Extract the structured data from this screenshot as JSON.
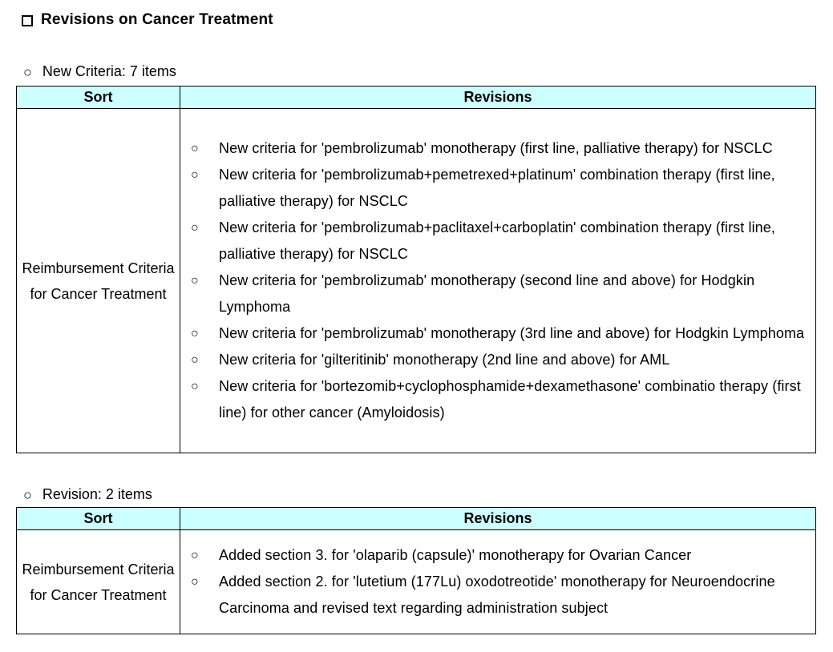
{
  "title": "Revisions on Cancer Treatment",
  "markers": {
    "title": "empty-square",
    "section": "○",
    "item": "○"
  },
  "colors": {
    "table_header_bg": "#CCFFFF",
    "border": "#000000",
    "text": "#000000"
  },
  "sections": [
    {
      "heading": "New Criteria: 7 items",
      "table": {
        "headers": [
          "Sort",
          "Revisions"
        ],
        "sort": "Reimbursement Criteria for Cancer Treatment",
        "revisions": [
          "New criteria for 'pembrolizumab' monotherapy (first line, palliative therapy) for NSCLC",
          "New criteria for 'pembrolizumab+pemetrexed+platinum' combination therapy (first line, palliative therapy) for NSCLC",
          "New criteria for 'pembrolizumab+paclitaxel+carboplatin' combination therapy (first line, palliative therapy) for NSCLC",
          "New criteria for 'pembrolizumab' monotherapy (second line and above) for Hodgkin Lymphoma",
          "New criteria for 'pembrolizumab' monotherapy (3rd line and above) for Hodgkin Lymphoma",
          "New criteria for 'gilteritinib' monotherapy (2nd line and above) for AML",
          "New criteria for 'bortezomib+cyclophosphamide+dexamethasone' combinatio therapy (first line) for other cancer (Amyloidosis)"
        ]
      }
    },
    {
      "heading": "Revision: 2 items",
      "table": {
        "headers": [
          "Sort",
          "Revisions"
        ],
        "sort": "Reimbursement Criteria for Cancer Treatment",
        "revisions": [
          "Added section 3. for 'olaparib (capsule)' monotherapy for Ovarian Cancer",
          "Added section 2. for 'lutetium (177Lu) oxodotreotide' monotherapy for Neuroendocrine Carcinoma and revised text regarding administration subject"
        ]
      }
    }
  ]
}
